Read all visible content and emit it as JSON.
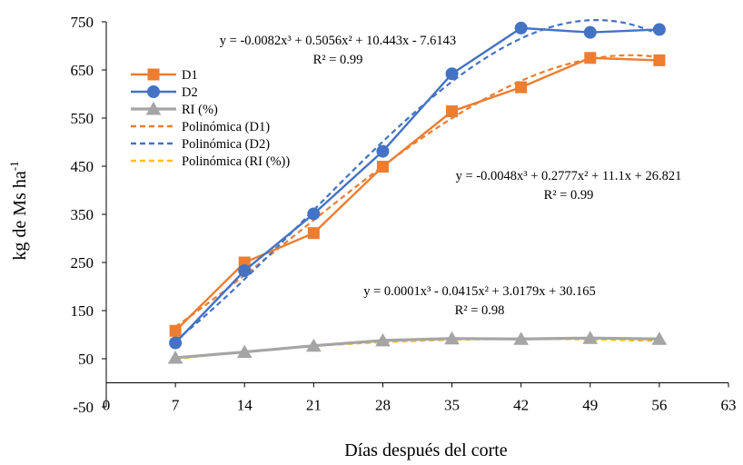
{
  "chart_data": {
    "type": "line",
    "xlabel": "Días después del corte",
    "ylabel_main": "kg de Ms ha",
    "ylabel_sup": "-1",
    "xlim": [
      0,
      63
    ],
    "ylim": [
      -50,
      750
    ],
    "xticks": [
      0,
      7,
      14,
      21,
      28,
      35,
      42,
      49,
      56,
      63
    ],
    "yticks": [
      -50,
      50,
      150,
      250,
      350,
      450,
      550,
      650,
      750
    ],
    "grid": false,
    "legend_position": "top-left",
    "x": [
      7,
      14,
      21,
      28,
      35,
      42,
      49,
      56
    ],
    "series": [
      {
        "name": "D1",
        "color": "#ED7D31",
        "marker": "square",
        "values": [
          108,
          250,
          311,
          449,
          564,
          614,
          675,
          670
        ]
      },
      {
        "name": "D2",
        "color": "#4472C4",
        "marker": "circle",
        "values": [
          83,
          233,
          351,
          481,
          642,
          737,
          728,
          734
        ]
      },
      {
        "name": "RI (%)",
        "color": "#A5A5A5",
        "marker": "triangle",
        "values": [
          52,
          64,
          77,
          88,
          92,
          91,
          93,
          91
        ]
      }
    ],
    "trendlines": [
      {
        "name": "Polinómica (D1)",
        "color": "#ED7D31",
        "coefficients": [
          -0.0048,
          0.2777,
          11.1,
          26.821
        ],
        "equation": "y = -0.0048x³ + 0.2777x² + 11.1x + 26.821",
        "r2": "R² = 0.99"
      },
      {
        "name": "Polinómica (D2)",
        "color": "#4472C4",
        "coefficients": [
          -0.0082,
          0.5056,
          10.443,
          -7.6143
        ],
        "equation": "y = -0.0082x³ + 0.5056x² + 10.443x - 7.6143",
        "r2": "R² = 0.99"
      },
      {
        "name": "Polinómica (RI (%))",
        "color": "#FFC000",
        "coefficients": [
          0.0001,
          -0.0415,
          3.0179,
          30.165
        ],
        "equation": "y = 0.0001x³ - 0.0415x² + 3.0179x + 30.165",
        "r2": "R² = 0.98"
      }
    ]
  }
}
